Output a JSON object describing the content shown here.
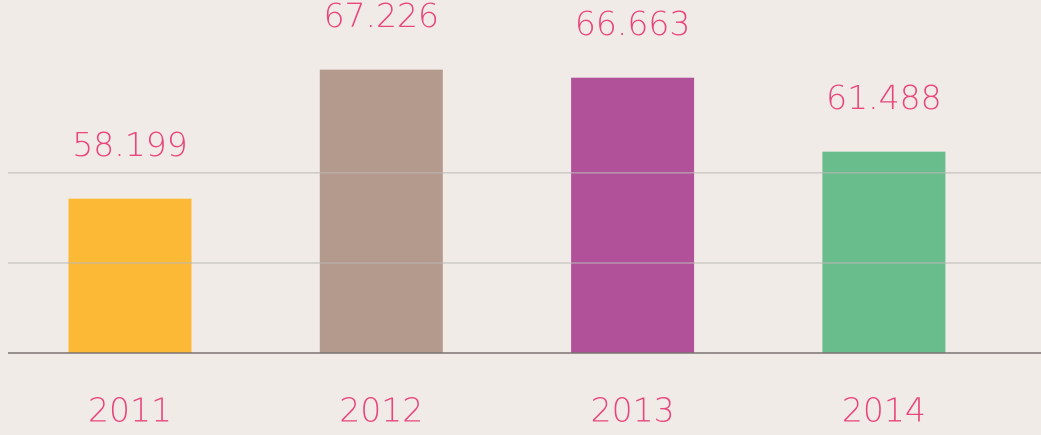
{
  "chart_data": {
    "type": "bar",
    "categories": [
      "2011",
      "2012",
      "2013",
      "2014"
    ],
    "values": [
      58.199,
      67.226,
      66.663,
      61.488
    ],
    "colors": [
      "#fbb936",
      "#b39a8d",
      "#b0519a",
      "#69bd8d"
    ],
    "ylim": [
      47.4,
      72.1
    ],
    "yticks": [
      47.4,
      53.7,
      60
    ],
    "grid": true
  }
}
